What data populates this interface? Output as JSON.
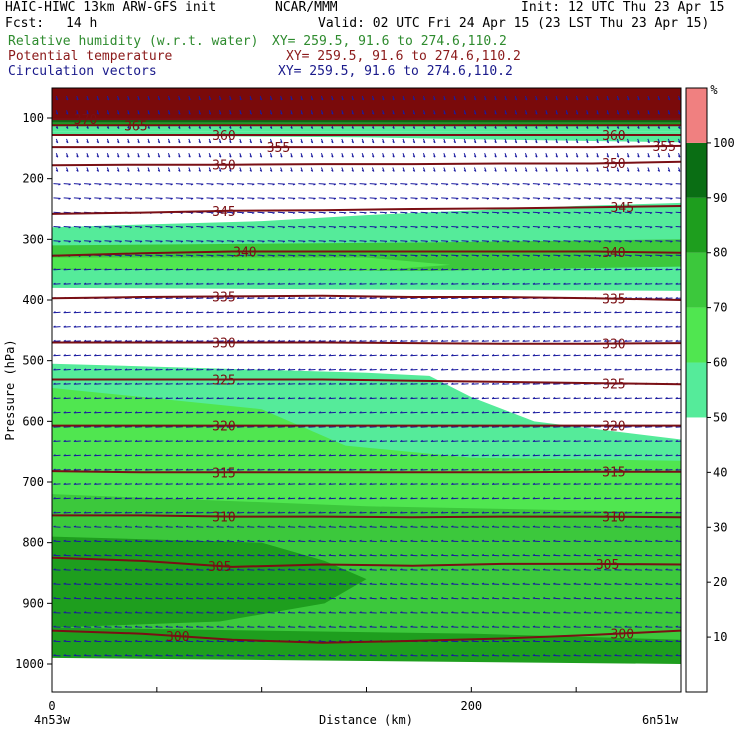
{
  "header": {
    "model": "HAIC-HIWC 13km ARW-GFS init",
    "center": "NCAR/MMM",
    "init": "Init: 12 UTC Thu 23 Apr 15",
    "fcst_label": "Fcst:",
    "fcst_value": "14 h",
    "valid": "Valid: 02 UTC Fri 24 Apr 15 (23 LST Thu 23 Apr 15)",
    "fields": [
      {
        "name": "Relative humidity (w.r.t. water)",
        "xy": "XY= 259.5, 91.6 to 274.6,110.2",
        "color": "#2e8b2e"
      },
      {
        "name": "Potential temperature",
        "xy": "XY= 259.5, 91.6 to 274.6,110.2",
        "color": "#8b1a1a"
      },
      {
        "name": "Circulation vectors",
        "xy": "XY= 259.5, 91.6 to 274.6,110.2",
        "color": "#1a1a8b"
      }
    ]
  },
  "chart_data": {
    "type": "heatmap",
    "xlabel": "Distance (km)",
    "ylabel": "Pressure (hPa)",
    "xlim": [
      0,
      300
    ],
    "ylim": [
      1050,
      62
    ],
    "x_ticks": [
      0,
      200
    ],
    "x_end_labels": {
      "left": "4n53w",
      "right": "6n51w"
    },
    "y_ticks": [
      100,
      200,
      300,
      400,
      500,
      600,
      700,
      800,
      900,
      1000
    ],
    "colorbar": {
      "unit": "%",
      "levels": [
        10,
        20,
        30,
        40,
        50,
        60,
        70,
        80,
        90,
        100
      ],
      "colors": [
        "#ffffff",
        "#ffffff",
        "#ffffff",
        "#ffffff",
        "#ffffff",
        "#55eb9a",
        "#50e650",
        "#3cc83c",
        "#1e9e1e",
        "#0a6e14",
        "#f08080"
      ]
    },
    "theta_contours": [
      {
        "theta": 300,
        "p": [
          945,
          950,
          960,
          965,
          962,
          958,
          952,
          945
        ],
        "label_x": [
          60,
          272
        ]
      },
      {
        "theta": 305,
        "p": [
          825,
          830,
          840,
          836,
          838,
          835,
          835,
          836
        ],
        "label_x": [
          80,
          265
        ]
      },
      {
        "theta": 310,
        "p": [
          755,
          755,
          757,
          757,
          758,
          757,
          757,
          758
        ],
        "label_x": [
          82,
          268
        ]
      },
      {
        "theta": 315,
        "p": [
          682,
          684,
          684,
          684,
          684,
          684,
          683,
          683
        ],
        "label_x": [
          82,
          268
        ]
      },
      {
        "theta": 320,
        "p": [
          607,
          607,
          607,
          607,
          607,
          607,
          607,
          607
        ],
        "label_x": [
          82,
          268
        ]
      },
      {
        "theta": 325,
        "p": [
          531,
          531,
          531,
          531,
          533,
          535,
          537,
          539
        ],
        "label_x": [
          82,
          268
        ]
      },
      {
        "theta": 330,
        "p": [
          470,
          470,
          470,
          470,
          471,
          472,
          472,
          471
        ],
        "label_x": [
          82,
          268
        ]
      },
      {
        "theta": 335,
        "p": [
          397,
          395,
          394,
          393,
          395,
          395,
          397,
          400
        ],
        "label_x": [
          82,
          268
        ]
      },
      {
        "theta": 340,
        "p": [
          327,
          323,
          320,
          320,
          320,
          320,
          320,
          322
        ],
        "label_x": [
          92,
          268
        ]
      },
      {
        "theta": 345,
        "p": [
          258,
          256,
          253,
          252,
          250,
          249,
          247,
          245
        ],
        "label_x": [
          82,
          272
        ]
      },
      {
        "theta": 350,
        "p": [
          178,
          177,
          177,
          176,
          176,
          175,
          175,
          172
        ],
        "label_x": [
          82,
          268
        ]
      },
      {
        "theta": 355,
        "p": [
          148,
          148,
          148,
          148,
          148,
          148,
          148,
          146
        ],
        "label_x": [
          108,
          292
        ]
      },
      {
        "theta": 360,
        "p": [
          128,
          128,
          128,
          128,
          128,
          128,
          128,
          128
        ],
        "label_x": [
          82,
          268
        ]
      },
      {
        "theta": 365,
        "p": [
          112,
          112,
          112,
          112,
          112,
          112,
          112,
          112
        ],
        "label_x": [
          40
        ]
      },
      {
        "theta": 370,
        "p": [
          102,
          102,
          102,
          102,
          102,
          102,
          102,
          102
        ],
        "label_x": [
          16
        ]
      }
    ],
    "theta_x": [
      0,
      43,
      86,
      129,
      172,
      215,
      258,
      300
    ]
  }
}
